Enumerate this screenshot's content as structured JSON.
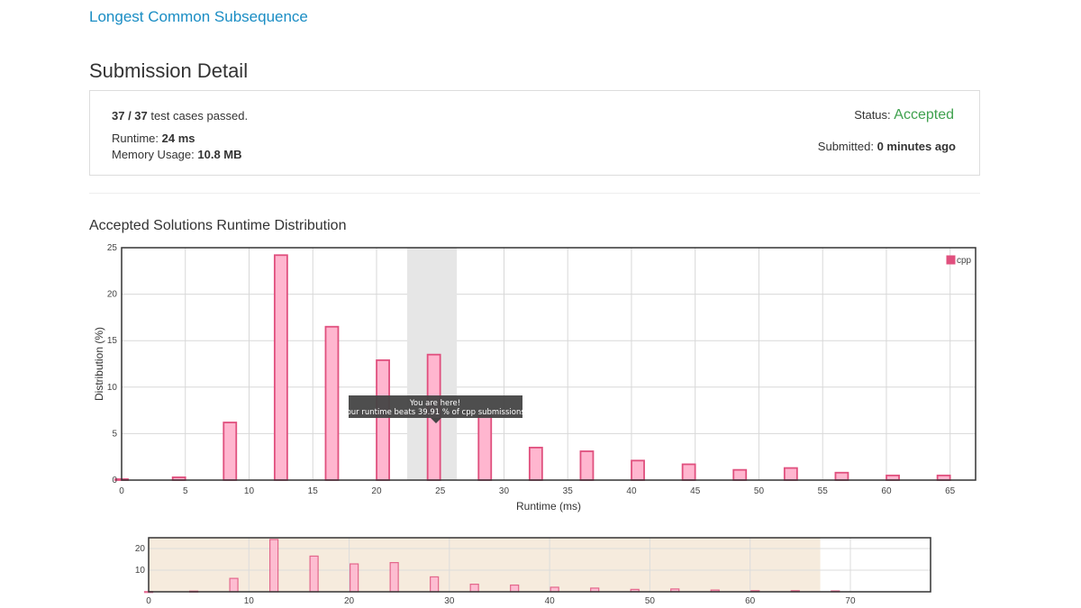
{
  "problem": {
    "title": "Longest Common Subsequence"
  },
  "page": {
    "title": "Submission Detail"
  },
  "detail": {
    "cases_passed": "37 / 37",
    "cases_suffix": "test cases passed.",
    "runtime_label": "Runtime:",
    "runtime_value": "24 ms",
    "memory_label": "Memory Usage:",
    "memory_value": "10.8 MB",
    "status_label": "Status:",
    "status_value": "Accepted",
    "submitted_label": "Submitted:",
    "submitted_value": "0 minutes ago"
  },
  "colors": {
    "bar_fill": "#ffb6cf",
    "bar_stroke": "#e0507e",
    "accepted": "#3fa14e",
    "link": "#1a8dc4",
    "highlight": "#e6e6e6",
    "navigator_band": "#f6ebdd"
  },
  "chart_data": {
    "type": "bar",
    "title": "Accepted Solutions Runtime Distribution",
    "xlabel": "Runtime (ms)",
    "ylabel": "Distribution (%)",
    "xlim": [
      0,
      67
    ],
    "ylim": [
      0,
      25
    ],
    "xticks": [
      0,
      5,
      10,
      15,
      20,
      25,
      30,
      35,
      40,
      45,
      50,
      55,
      60,
      65
    ],
    "yticks": [
      0,
      5,
      10,
      15,
      20,
      25
    ],
    "grid": true,
    "legend": {
      "position": "top-right",
      "entries": [
        "cpp"
      ]
    },
    "series": [
      {
        "name": "cpp",
        "x": [
          0,
          4.5,
          8.5,
          12.5,
          16.5,
          20.5,
          24.5,
          28.5,
          32.5,
          36.5,
          40.5,
          44.5,
          48.5,
          52.5,
          56.5,
          60.5,
          64.5
        ],
        "values": [
          0.1,
          0.3,
          6.2,
          24.2,
          16.5,
          12.9,
          13.5,
          6.9,
          3.5,
          3.1,
          2.1,
          1.7,
          1.1,
          1.3,
          0.8,
          0.5,
          0.5
        ]
      }
    ],
    "highlight_range": [
      22.4,
      26.3
    ],
    "tooltip": {
      "line1": "You are here!",
      "line2": "Your runtime beats 39.91 % of cpp submissions."
    },
    "navigator": {
      "xlim": [
        0,
        78
      ],
      "xticks": [
        0,
        10,
        20,
        30,
        40,
        50,
        60,
        70
      ],
      "yticks": [
        10,
        20
      ],
      "ylim": [
        0,
        25
      ],
      "selected_range": [
        0,
        67
      ],
      "x": [
        0,
        4.5,
        8.5,
        12.5,
        16.5,
        20.5,
        24.5,
        28.5,
        32.5,
        36.5,
        40.5,
        44.5,
        48.5,
        52.5,
        56.5,
        60.5,
        64.5,
        68.5
      ],
      "values": [
        0.1,
        0.3,
        6.2,
        24.2,
        16.5,
        12.9,
        13.5,
        6.9,
        3.5,
        3.1,
        2.1,
        1.7,
        1.1,
        1.3,
        0.8,
        0.5,
        0.5,
        0.4
      ]
    }
  }
}
